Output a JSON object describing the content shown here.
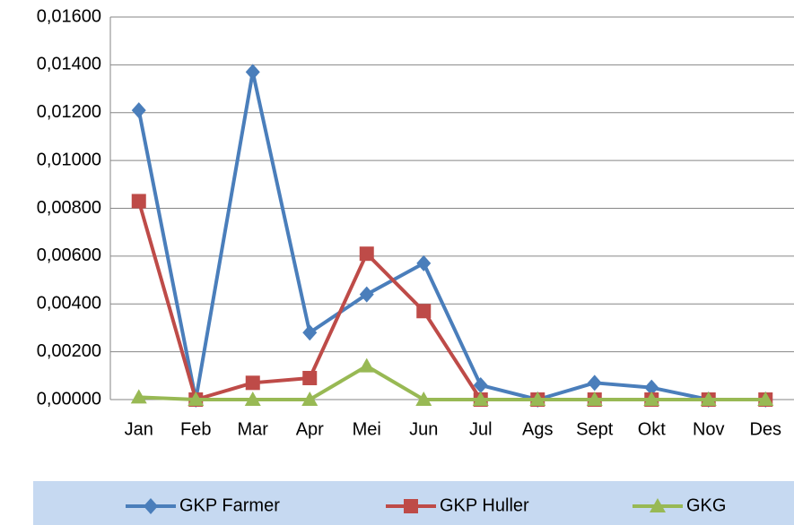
{
  "chart_data": {
    "type": "line",
    "categories": [
      "Jan",
      "Feb",
      "Mar",
      "Apr",
      "Mei",
      "Jun",
      "Jul",
      "Ags",
      "Sept",
      "Okt",
      "Nov",
      "Des"
    ],
    "series": [
      {
        "name": "GKP Farmer",
        "color": "#4a7ebb",
        "marker": "diamond",
        "values": [
          0.0121,
          0,
          0.0137,
          0.0028,
          0.0044,
          0.0057,
          0.0006,
          0,
          0.0007,
          0.0005,
          0,
          0
        ]
      },
      {
        "name": "GKP Huller",
        "color": "#be4b48",
        "marker": "square",
        "values": [
          0.0083,
          0,
          0.0007,
          0.0009,
          0.0061,
          0.0037,
          0,
          0,
          0,
          0,
          0,
          0
        ]
      },
      {
        "name": "GKG",
        "color": "#98b954",
        "marker": "triangle",
        "values": [
          0.0001,
          0,
          0,
          0,
          0.0014,
          0,
          0,
          0,
          0,
          0,
          0,
          0
        ]
      }
    ],
    "ylim": [
      0,
      0.016
    ],
    "yticks": [
      {
        "value": 0,
        "label": "0,00000"
      },
      {
        "value": 0.002,
        "label": "0,00200"
      },
      {
        "value": 0.004,
        "label": "0,00400"
      },
      {
        "value": 0.006,
        "label": "0,00600"
      },
      {
        "value": 0.008,
        "label": "0,00800"
      },
      {
        "value": 0.01,
        "label": "0,01000"
      },
      {
        "value": 0.012,
        "label": "0,01200"
      },
      {
        "value": 0.014,
        "label": "0,01400"
      },
      {
        "value": 0.016,
        "label": "0,01600"
      }
    ],
    "grid": true,
    "legend": "bottom"
  }
}
